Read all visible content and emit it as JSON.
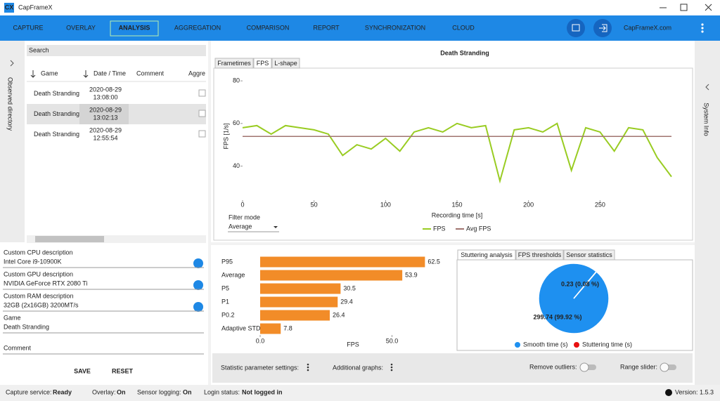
{
  "window": {
    "icon": "CX",
    "title": "CapFrameX"
  },
  "nav": {
    "tabs": [
      "CAPTURE",
      "OVERLAY",
      "ANALYSIS",
      "AGGREGATION",
      "COMPARISON",
      "REPORT",
      "SYNCHRONIZATION",
      "CLOUD"
    ],
    "active": 2,
    "brand": "CapFrameX.com"
  },
  "left": {
    "side_label": "Observed directory",
    "search": "Search",
    "columns": [
      "Game",
      "Date / Time",
      "Comment",
      "Aggre"
    ],
    "rows": [
      {
        "game": "Death Stranding",
        "date": "2020-08-29",
        "time": "13:08:00"
      },
      {
        "game": "Death Stranding",
        "date": "2020-08-29",
        "time": "13:02:13"
      },
      {
        "game": "Death Stranding",
        "date": "2020-08-29",
        "time": "12:55:54"
      }
    ],
    "selected": 1
  },
  "fields": [
    {
      "label": "Custom CPU description",
      "value": "Intel Core i9-10900K"
    },
    {
      "label": "Custom GPU description",
      "value": "NVIDIA GeForce RTX 2080 Ti"
    },
    {
      "label": "Custom RAM description",
      "value": "32GB (2x16GB) 3200MT/s"
    },
    {
      "label": "Game",
      "value": "Death Stranding"
    },
    {
      "label": "Comment"
    }
  ],
  "buttons": [
    "SAVE",
    "RESET"
  ],
  "chart_tabs": [
    "Frametimes",
    "FPS",
    "L-shape"
  ],
  "chart_tab_active": 1,
  "filter": {
    "label": "Filter mode",
    "value": "Average"
  },
  "right_side_label": "System Info",
  "stutter_tabs": [
    "Stuttering analysis",
    "FPS thresholds",
    "Sensor statistics"
  ],
  "bottom_bar": {
    "menus": [
      "Statistic parameter settings:",
      "Additional graphs:"
    ],
    "toggles": [
      "Remove outliers:",
      "Range slider:"
    ]
  },
  "status": [
    {
      "label": "Capture service:",
      "value": "Ready",
      "color": "#2e9e2e"
    },
    {
      "label": "Overlay:",
      "value": "On",
      "color": "#2e9e2e"
    },
    {
      "label": "Sensor logging:",
      "value": "On",
      "color": "#2e9e2e"
    },
    {
      "label": "Login status:",
      "value": "Not logged in",
      "color": "#e02020"
    }
  ],
  "version": "Version: 1.5.3",
  "chart_data": [
    {
      "type": "line",
      "title": "Death Stranding",
      "x_label": "Recording time [s]",
      "y_label": "FPS [1/s]",
      "x": [
        0,
        10,
        20,
        30,
        40,
        50,
        60,
        70,
        80,
        90,
        100,
        110,
        120,
        130,
        140,
        150,
        160,
        170,
        180,
        190,
        200,
        210,
        220,
        230,
        240,
        250,
        260,
        270,
        280,
        290,
        300
      ],
      "series": [
        {
          "name": "FPS",
          "color": "#99cc22",
          "values": [
            58,
            59,
            55,
            59,
            58,
            57,
            55,
            45,
            50,
            48,
            53,
            47,
            56,
            58,
            56,
            60,
            58,
            59,
            33,
            57,
            58,
            56,
            60,
            38,
            58,
            56,
            47,
            58,
            57,
            44,
            35
          ]
        },
        {
          "name": "Avg FPS",
          "color": "#a0736f",
          "values": [
            53.9,
            53.9,
            53.9,
            53.9,
            53.9,
            53.9,
            53.9,
            53.9,
            53.9,
            53.9,
            53.9,
            53.9,
            53.9,
            53.9,
            53.9,
            53.9,
            53.9,
            53.9,
            53.9,
            53.9,
            53.9,
            53.9,
            53.9,
            53.9,
            53.9,
            53.9,
            53.9,
            53.9,
            53.9,
            53.9,
            53.9
          ]
        }
      ],
      "xlim": [
        0,
        300
      ],
      "ylim": [
        24,
        84
      ],
      "xticks": [
        0,
        50,
        100,
        150,
        200,
        250
      ],
      "yticks": [
        40,
        60,
        80
      ]
    },
    {
      "type": "bar",
      "orientation": "horizontal",
      "x_label": "FPS",
      "categories": [
        "P95",
        "Average",
        "P5",
        "P1",
        "P0.2",
        "Adaptive STDEV"
      ],
      "values": [
        62.5,
        53.9,
        30.5,
        29.4,
        26.4,
        7.8
      ],
      "color": "#f28c28",
      "xlim": [
        0,
        72
      ],
      "xticks": [
        {
          "value": 0,
          "label": "0.0"
        },
        {
          "value": 50,
          "label": "50.0"
        }
      ]
    },
    {
      "type": "pie",
      "categories": [
        "Smooth time (s)",
        "Stuttering time (s)"
      ],
      "values": [
        299.74,
        0.23
      ],
      "value_labels": [
        "299.74 (99.92 %)",
        "0.23 (0.08 %)"
      ],
      "colors": [
        "#1e90f0",
        "#e81010"
      ]
    }
  ]
}
